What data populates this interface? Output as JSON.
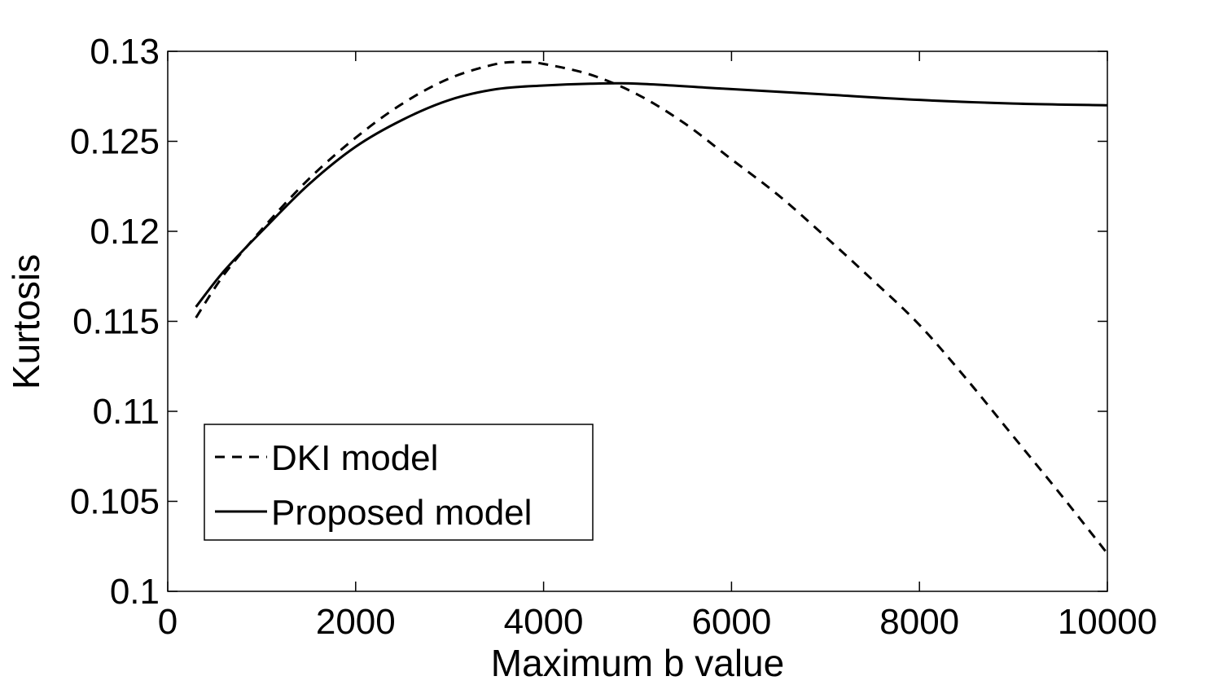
{
  "chart_data": {
    "type": "line",
    "title": "",
    "xlabel": "Maximum b value",
    "ylabel": "Kurtosis",
    "xlim": [
      0,
      10000
    ],
    "ylim": [
      0.1,
      0.13
    ],
    "xticks": [
      0,
      2000,
      4000,
      6000,
      8000,
      10000
    ],
    "xtick_labels": [
      "0",
      "2000",
      "4000",
      "6000",
      "8000",
      "10000"
    ],
    "yticks": [
      0.1,
      0.105,
      0.11,
      0.115,
      0.12,
      0.125,
      0.13
    ],
    "ytick_labels": [
      "0.1",
      "0.105",
      "0.11",
      "0.115",
      "0.12",
      "0.125",
      "0.13"
    ],
    "grid": false,
    "legend_position": "bottom-left",
    "series": [
      {
        "name": "DKI model",
        "style": "dashed",
        "color": "#000000",
        "x": [
          300,
          600,
          1000,
          1500,
          2000,
          2500,
          3000,
          3500,
          3800,
          4000,
          4500,
          5000,
          5500,
          6000,
          6500,
          7000,
          7500,
          8000,
          8500,
          9000,
          9500,
          10000
        ],
        "y": [
          0.1152,
          0.1176,
          0.1201,
          0.1229,
          0.1252,
          0.1271,
          0.1285,
          0.1293,
          0.1294,
          0.1293,
          0.1287,
          0.1276,
          0.126,
          0.124,
          0.122,
          0.1197,
          0.1173,
          0.1148,
          0.1118,
          0.1086,
          0.1054,
          0.1021
        ]
      },
      {
        "name": "Proposed model",
        "style": "solid",
        "color": "#000000",
        "x": [
          300,
          600,
          1000,
          1500,
          2000,
          2500,
          3000,
          3500,
          4000,
          4500,
          5000,
          6000,
          7000,
          8000,
          9000,
          10000
        ],
        "y": [
          0.1158,
          0.1178,
          0.12,
          0.1226,
          0.1247,
          0.1262,
          0.1273,
          0.1279,
          0.1281,
          0.1282,
          0.1282,
          0.1279,
          0.1276,
          0.1273,
          0.1271,
          0.127
        ]
      }
    ]
  }
}
